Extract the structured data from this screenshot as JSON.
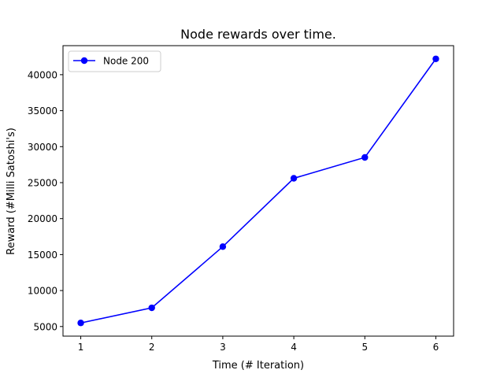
{
  "chart_data": {
    "type": "line",
    "title": "Node rewards over time.",
    "xlabel": "Time (# Iteration)",
    "ylabel": "Reward (#Milli Satoshi's)",
    "x": [
      1,
      2,
      3,
      4,
      5,
      6
    ],
    "series": [
      {
        "name": "Node 200",
        "color": "#0000ff",
        "marker": "circle",
        "values": [
          5500,
          7600,
          16100,
          25600,
          28500,
          42200
        ]
      }
    ],
    "xlim": [
      0.75,
      6.25
    ],
    "ylim": [
      3665,
      44035
    ],
    "xticks": [
      1,
      2,
      3,
      4,
      5,
      6
    ],
    "yticks": [
      5000,
      10000,
      15000,
      20000,
      25000,
      30000,
      35000,
      40000
    ],
    "grid": false,
    "legend": "upper-left"
  }
}
